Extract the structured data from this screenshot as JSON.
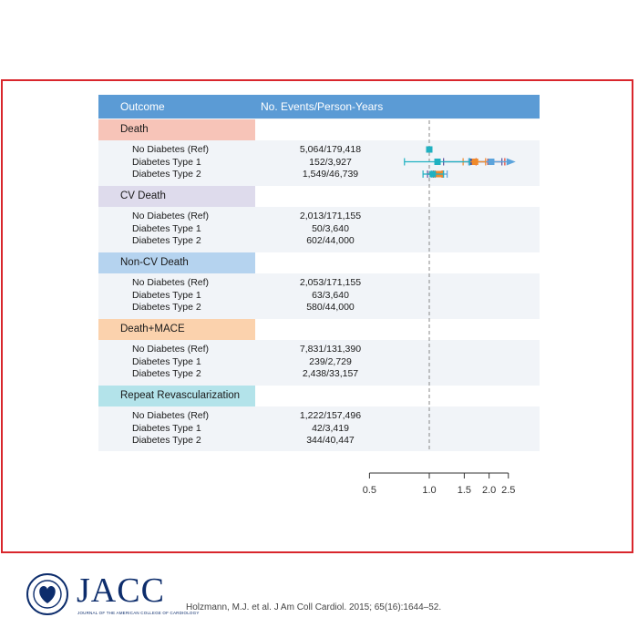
{
  "header": {
    "outcome_label": "Outcome",
    "events_label": "No. Events/Person-Years"
  },
  "groups": [
    {
      "name": "Death",
      "color": "#e7412e",
      "header_bg": "#f7c4b8",
      "rows": [
        {
          "label": "No Diabetes (Ref)",
          "events": "5,064/179,418"
        },
        {
          "label": "Diabetes Type 1",
          "events": "152/3,927"
        },
        {
          "label": "Diabetes Type 2",
          "events": "1,549/46,739"
        }
      ]
    },
    {
      "name": "CV Death",
      "color": "#5a4e9a",
      "header_bg": "#dedbec",
      "rows": [
        {
          "label": "No Diabetes (Ref)",
          "events": "2,013/171,155"
        },
        {
          "label": "Diabetes Type 1",
          "events": "50/3,640"
        },
        {
          "label": "Diabetes Type 2",
          "events": "602/44,000"
        }
      ]
    },
    {
      "name": "Non-CV Death",
      "color": "#5ba3dc",
      "header_bg": "#b5d3ef",
      "rows": [
        {
          "label": "No Diabetes (Ref)",
          "events": "2,053/171,155"
        },
        {
          "label": "Diabetes Type 1",
          "events": "63/3,640"
        },
        {
          "label": "Diabetes Type 2",
          "events": "580/44,000"
        }
      ]
    },
    {
      "name": "Death+MACE",
      "color": "#f08a2c",
      "header_bg": "#fbd2ad",
      "rows": [
        {
          "label": "No Diabetes (Ref)",
          "events": "7,831/131,390"
        },
        {
          "label": "Diabetes Type 1",
          "events": "239/2,729"
        },
        {
          "label": "Diabetes Type 2",
          "events": "2,438/33,157"
        }
      ]
    },
    {
      "name": "Repeat Revascularization",
      "color": "#20b1c1",
      "header_bg": "#b3e3ea",
      "rows": [
        {
          "label": "No Diabetes (Ref)",
          "events": "1,222/157,496"
        },
        {
          "label": "Diabetes Type 1",
          "events": "42/3,419"
        },
        {
          "label": "Diabetes Type 2",
          "events": "344/40,447"
        }
      ]
    }
  ],
  "chart_data": {
    "type": "scatter",
    "subtype": "forest-plot",
    "x_scale": "log",
    "xlim": [
      0.5,
      2.5
    ],
    "reference_line": 1.0,
    "x_ticks": [
      0.5,
      1.0,
      1.5,
      2.0,
      2.5
    ],
    "x_tick_labels": [
      "0.5",
      "1.0",
      "1.5",
      "2.0",
      "2.5"
    ],
    "series": [
      {
        "name": "Death",
        "points": [
          {
            "label": "No Diabetes (Ref)",
            "estimate": 1.0,
            "lower": 1.0,
            "upper": 1.0
          },
          {
            "label": "Diabetes Type 1",
            "estimate": 2.03,
            "lower": 1.72,
            "upper": 2.4
          },
          {
            "label": "Diabetes Type 2",
            "estimate": 1.1,
            "lower": 1.05,
            "upper": 1.16
          }
        ]
      },
      {
        "name": "CV Death",
        "points": [
          {
            "label": "No Diabetes (Ref)",
            "estimate": 1.0,
            "lower": 1.0,
            "upper": 1.0
          },
          {
            "label": "Diabetes Type 1",
            "estimate": 1.65,
            "lower": 1.18,
            "upper": 2.32
          },
          {
            "label": "Diabetes Type 2",
            "estimate": 1.06,
            "lower": 0.98,
            "upper": 1.17
          }
        ]
      },
      {
        "name": "Non-CV Death",
        "points": [
          {
            "label": "No Diabetes (Ref)",
            "estimate": 1.0,
            "lower": 1.0,
            "upper": 1.0
          },
          {
            "label": "Diabetes Type 1",
            "estimate": 2.05,
            "lower": 1.58,
            "upper": 2.5,
            "arrow": true
          },
          {
            "label": "Diabetes Type 2",
            "estimate": 1.13,
            "lower": 1.03,
            "upper": 1.23
          }
        ]
      },
      {
        "name": "Death+MACE",
        "points": [
          {
            "label": "No Diabetes (Ref)",
            "estimate": 1.0,
            "lower": 1.0,
            "upper": 1.0
          },
          {
            "label": "Diabetes Type 1",
            "estimate": 1.7,
            "lower": 1.48,
            "upper": 1.92
          },
          {
            "label": "Diabetes Type 2",
            "estimate": 1.12,
            "lower": 1.07,
            "upper": 1.17
          }
        ]
      },
      {
        "name": "Repeat Revascularization",
        "points": [
          {
            "label": "No Diabetes (Ref)",
            "estimate": 1.0,
            "lower": 1.0,
            "upper": 1.0
          },
          {
            "label": "Diabetes Type 1",
            "estimate": 1.1,
            "lower": 0.75,
            "upper": 1.6
          },
          {
            "label": "Diabetes Type 2",
            "estimate": 1.04,
            "lower": 0.93,
            "upper": 1.18
          }
        ]
      }
    ]
  },
  "footer": {
    "logo_text": "JACC",
    "journal_name": "JOURNAL OF THE AMERICAN COLLEGE OF CARDIOLOGY",
    "citation": "Holzmann, M.J. et al. J Am Coll Cardiol. 2015; 65(16):1644–52."
  }
}
